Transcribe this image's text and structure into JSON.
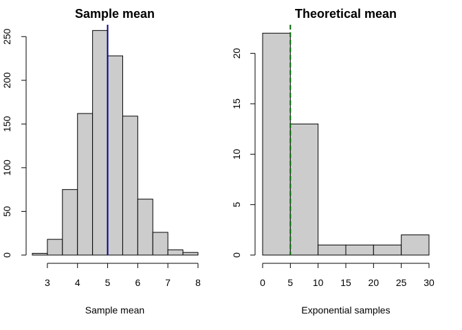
{
  "colors": {
    "bar_fill": "#cccccc",
    "bar_stroke": "#000000",
    "left_ref_line": "#00008b",
    "right_ref_line": "#006400"
  },
  "chart_data": [
    {
      "type": "bar",
      "title": "Sample mean",
      "xlabel": "Sample mean",
      "ylabel": "",
      "bin_edges": [
        2.5,
        3,
        3.5,
        4,
        4.5,
        5,
        5.5,
        6,
        6.5,
        7,
        7.5,
        8
      ],
      "values": [
        2,
        18,
        75,
        162,
        257,
        228,
        159,
        64,
        26,
        6,
        3
      ],
      "xlim": [
        2.5,
        8
      ],
      "ylim": [
        0,
        262
      ],
      "x_ticks": [
        3,
        4,
        5,
        6,
        7,
        8
      ],
      "x_tick_labels": [
        "3",
        "4",
        "5",
        "6",
        "7",
        "8"
      ],
      "y_ticks": [
        0,
        50,
        100,
        150,
        200,
        250
      ],
      "y_tick_labels": [
        "0",
        "50",
        "100",
        "150",
        "200",
        "250"
      ],
      "reference_line": {
        "x": 5,
        "style": "solid",
        "color": "#00008b"
      },
      "grid": false
    },
    {
      "type": "bar",
      "title": "Theoretical mean",
      "xlabel": "Exponential samples",
      "ylabel": "",
      "bin_edges": [
        0,
        5,
        10,
        15,
        20,
        25,
        30
      ],
      "values": [
        22,
        13,
        1,
        1,
        1,
        2
      ],
      "xlim": [
        0,
        30
      ],
      "ylim": [
        0,
        22.7
      ],
      "x_ticks": [
        0,
        5,
        10,
        15,
        20,
        25,
        30
      ],
      "x_tick_labels": [
        "0",
        "5",
        "10",
        "15",
        "20",
        "25",
        "30"
      ],
      "y_ticks": [
        0,
        5,
        10,
        15,
        20
      ],
      "y_tick_labels": [
        "0",
        "5",
        "10",
        "15",
        "20"
      ],
      "reference_line": {
        "x": 5,
        "style": "dashed",
        "color": "#006400"
      },
      "grid": false
    }
  ]
}
